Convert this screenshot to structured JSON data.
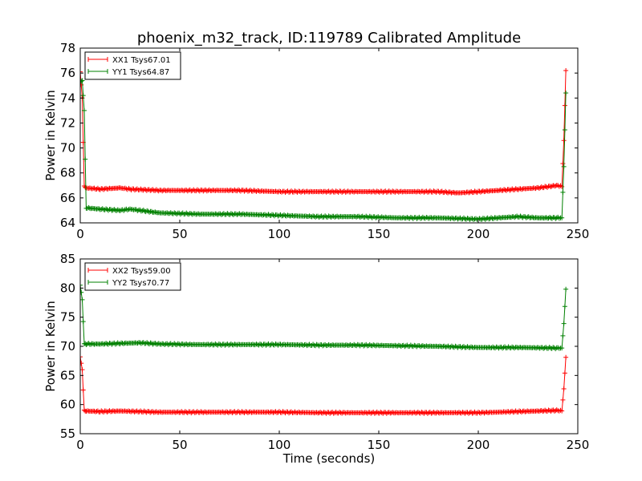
{
  "title": "phoenix_m32_track, ID:119789 Calibrated Amplitude",
  "chart_data": [
    {
      "type": "line",
      "title": "phoenix_m32_track, ID:119789 Calibrated Amplitude",
      "xlabel": "",
      "ylabel": "Power in Kelvin",
      "xlim": [
        0,
        250
      ],
      "ylim": [
        64,
        78
      ],
      "xticks": [
        "0",
        "50",
        "100",
        "150",
        "200",
        "250"
      ],
      "yticks": [
        "64",
        "66",
        "68",
        "70",
        "72",
        "74",
        "76",
        "78"
      ],
      "grid": false,
      "legend_position": "top-left",
      "series": [
        {
          "name": "XX1 Tsys67.01",
          "color": "#ff0000",
          "marker": "+",
          "x": [
            0,
            1,
            2,
            3,
            10,
            20,
            25,
            40,
            60,
            80,
            100,
            120,
            140,
            160,
            180,
            190,
            200,
            210,
            220,
            230,
            240,
            242,
            243,
            244
          ],
          "y": [
            76.1,
            74.0,
            66.9,
            66.8,
            66.7,
            66.8,
            66.7,
            66.6,
            66.6,
            66.6,
            66.5,
            66.5,
            66.5,
            66.5,
            66.5,
            66.4,
            66.5,
            66.6,
            66.7,
            66.8,
            67.0,
            66.9,
            70.6,
            76.2
          ]
        },
        {
          "name": "YY1 Tsys64.87",
          "color": "#008000",
          "marker": "+",
          "x": [
            0,
            1,
            2,
            3,
            10,
            20,
            25,
            30,
            40,
            60,
            80,
            100,
            120,
            140,
            160,
            180,
            200,
            210,
            220,
            230,
            240,
            242,
            243,
            244
          ],
          "y": [
            75.3,
            75.4,
            73.0,
            65.2,
            65.1,
            65.0,
            65.1,
            65.0,
            64.8,
            64.7,
            64.7,
            64.6,
            64.5,
            64.5,
            64.4,
            64.4,
            64.3,
            64.4,
            64.5,
            64.4,
            64.4,
            64.4,
            68.5,
            74.4
          ]
        }
      ]
    },
    {
      "type": "line",
      "title": "",
      "xlabel": "Time (seconds)",
      "ylabel": "Power in Kelvin",
      "xlim": [
        0,
        250
      ],
      "ylim": [
        55,
        85
      ],
      "xticks": [
        "0",
        "50",
        "100",
        "150",
        "200",
        "250"
      ],
      "yticks": [
        "55",
        "60",
        "65",
        "70",
        "75",
        "80",
        "85"
      ],
      "grid": false,
      "legend_position": "top-left",
      "series": [
        {
          "name": "XX2 Tsys59.00",
          "color": "#ff0000",
          "marker": "+",
          "x": [
            0,
            1,
            2,
            3,
            10,
            20,
            40,
            60,
            80,
            100,
            120,
            140,
            160,
            180,
            200,
            220,
            230,
            240,
            242,
            243,
            244
          ],
          "y": [
            68.2,
            66.0,
            59.0,
            58.9,
            58.8,
            58.9,
            58.7,
            58.7,
            58.7,
            58.7,
            58.6,
            58.6,
            58.6,
            58.6,
            58.6,
            58.8,
            58.9,
            59.0,
            58.9,
            62.7,
            68.1
          ]
        },
        {
          "name": "YY2 Tsys70.77",
          "color": "#008000",
          "marker": "+",
          "x": [
            0,
            1,
            2,
            3,
            10,
            20,
            30,
            40,
            60,
            80,
            100,
            120,
            140,
            160,
            180,
            200,
            220,
            240,
            242,
            243,
            244
          ],
          "y": [
            80.5,
            78.0,
            70.5,
            70.4,
            70.4,
            70.5,
            70.6,
            70.4,
            70.3,
            70.3,
            70.3,
            70.2,
            70.2,
            70.1,
            70.0,
            69.8,
            69.8,
            69.7,
            69.7,
            73.9,
            79.8
          ]
        }
      ]
    }
  ]
}
